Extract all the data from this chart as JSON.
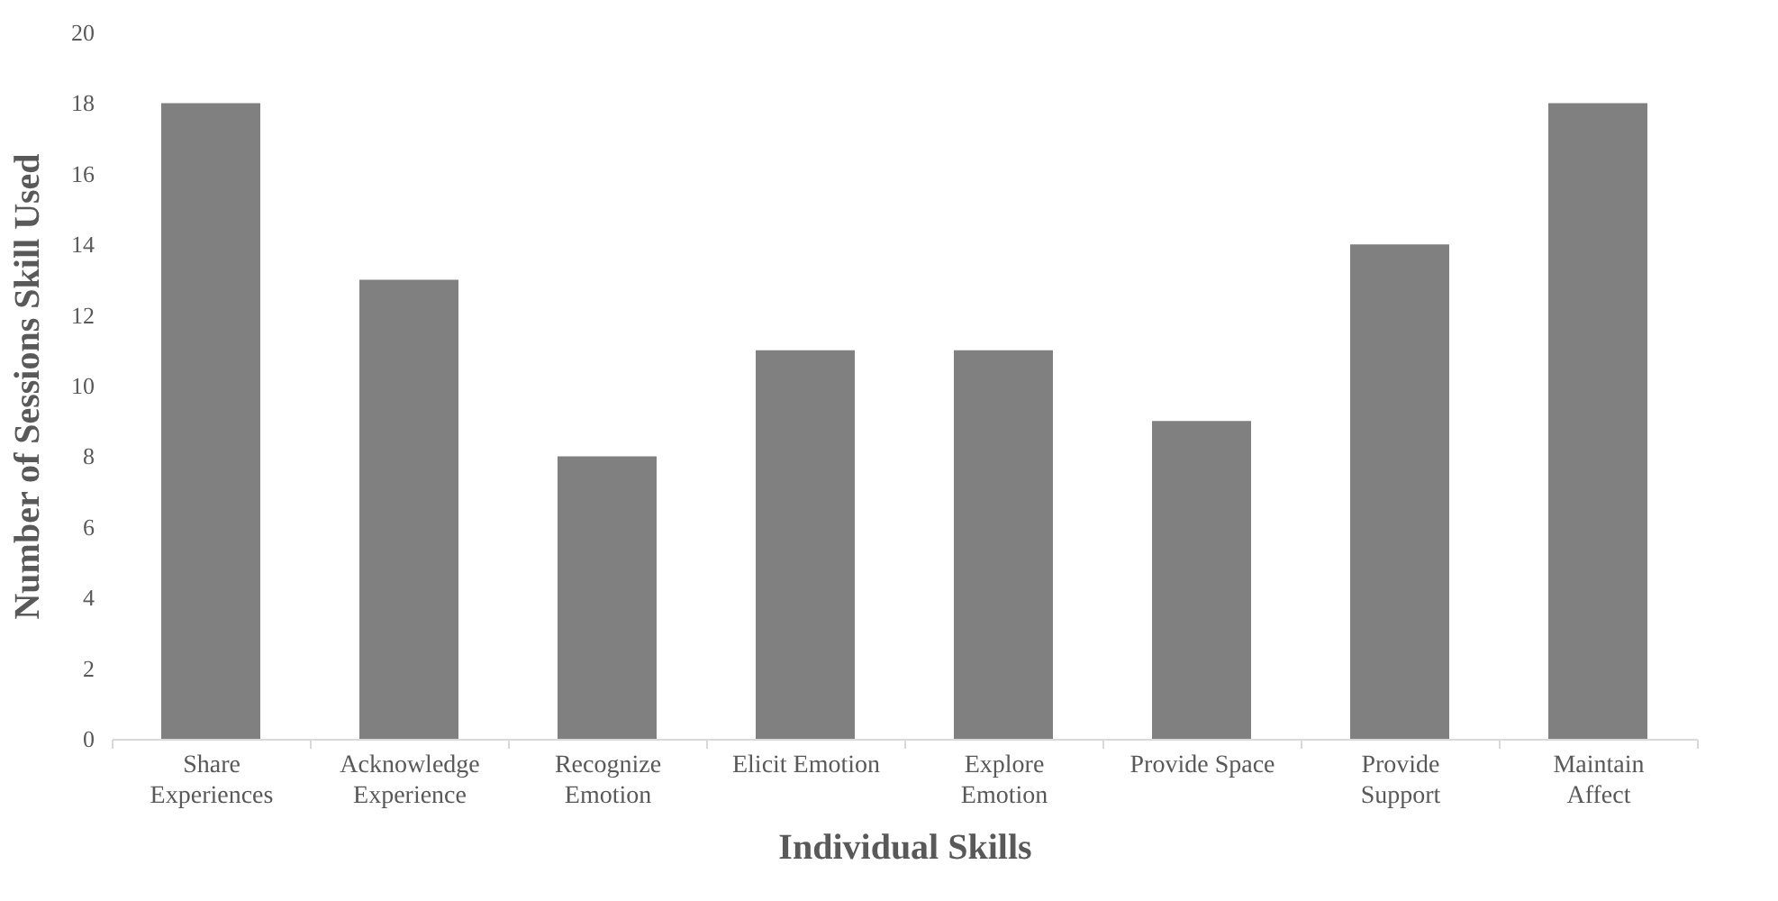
{
  "chart_data": {
    "type": "bar",
    "xlabel": "Individual Skills",
    "ylabel": "Number of Sessions Skill Used",
    "categories": [
      "Share Experiences",
      "Acknowledge Experience",
      "Recognize Emotion",
      "Elicit Emotion",
      "Explore Emotion",
      "Provide Space",
      "Provide Support",
      "Maintain Affect"
    ],
    "values": [
      18,
      13,
      8,
      11,
      11,
      9,
      14,
      18
    ],
    "color": "#808080",
    "ylim": [
      0,
      20
    ],
    "yticks": [
      0,
      2,
      4,
      6,
      8,
      10,
      12,
      14,
      16,
      18,
      20
    ],
    "grid": false
  }
}
